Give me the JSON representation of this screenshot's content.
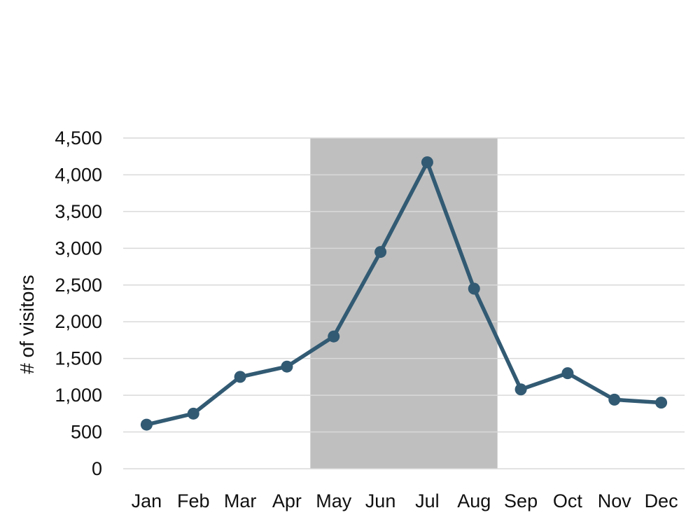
{
  "chart_data": {
    "type": "line",
    "title": "",
    "xlabel": "",
    "ylabel": "# of visitors",
    "ylim": [
      0,
      4500
    ],
    "y_ticks": [
      0,
      500,
      1000,
      1500,
      2000,
      2500,
      3000,
      3500,
      4000,
      4500
    ],
    "y_tick_labels": [
      "0",
      "500",
      "1,000",
      "1,500",
      "2,000",
      "2,500",
      "3,000",
      "3,500",
      "4,000",
      "4,500"
    ],
    "categories": [
      "Jan",
      "Feb",
      "Mar",
      "Apr",
      "May",
      "Jun",
      "Jul",
      "Aug",
      "Sep",
      "Oct",
      "Nov",
      "Dec"
    ],
    "series": [
      {
        "values": [
          600,
          750,
          1250,
          1390,
          1800,
          2950,
          4170,
          2450,
          1080,
          1300,
          940,
          900
        ]
      }
    ],
    "highlight_band": {
      "from": "May",
      "to": "Aug"
    },
    "grid": true,
    "legend": "none",
    "colors": {
      "line": "#325a73",
      "marker": "#325a73",
      "band": "#bfbfbf",
      "grid": "#d9d9d9"
    }
  }
}
